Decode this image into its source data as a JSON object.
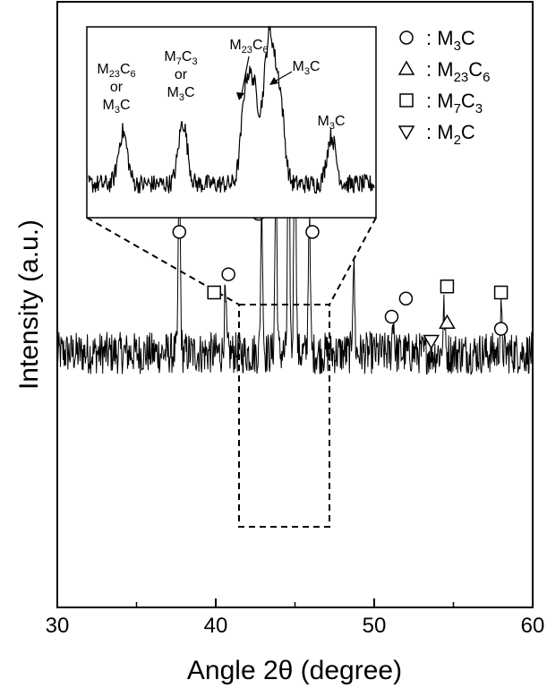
{
  "chart_data": {
    "type": "line",
    "xlabel": "Angle 2θ (degree)",
    "ylabel": "Intensity (a.u.)",
    "xlim": [
      30,
      60
    ],
    "x_ticks": [
      30,
      40,
      50,
      60
    ],
    "y_ticks_labeled": false,
    "grid": false,
    "legend_position": "top-right",
    "legend": [
      {
        "symbol": "circle",
        "label_main": "M",
        "label_sub1": "3",
        "label_rest": "C"
      },
      {
        "symbol": "triangle-up",
        "label_main": "M",
        "label_sub1": "23",
        "label_mid": "C",
        "label_sub2": "6"
      },
      {
        "symbol": "square",
        "label_main": "M",
        "label_sub1": "7",
        "label_mid": "C",
        "label_sub2": "3"
      },
      {
        "symbol": "triangle-down",
        "label_main": "M",
        "label_sub1": "2",
        "label_rest": "C"
      }
    ],
    "series": [
      {
        "peaks": [
          {
            "x": 37.7,
            "height": 0.3
          },
          {
            "x": 40.6,
            "height": 0.09
          },
          {
            "x": 42.9,
            "height": 0.25
          },
          {
            "x": 43.8,
            "height": 0.3
          },
          {
            "x": 44.6,
            "height": 0.4
          },
          {
            "x": 45.0,
            "height": 0.44
          },
          {
            "x": 45.9,
            "height": 0.23
          },
          {
            "x": 48.7,
            "height": 0.15
          },
          {
            "x": 51.2,
            "height": 0.06
          },
          {
            "x": 54.4,
            "height": 0.07
          },
          {
            "x": 58.0,
            "height": 0.06
          }
        ],
        "baseline": 0.42,
        "noise": 0.035
      }
    ],
    "markers": [
      {
        "symbol": "circle",
        "x": 37.7,
        "y": 0.62
      },
      {
        "symbol": "triangle-up",
        "x": 37.7,
        "y": 0.68
      },
      {
        "symbol": "square",
        "x": 39.9,
        "y": 0.52
      },
      {
        "symbol": "circle",
        "x": 40.8,
        "y": 0.55
      },
      {
        "symbol": "circle",
        "x": 42.7,
        "y": 0.65
      },
      {
        "symbol": "triangle-up",
        "x": 42.8,
        "y": 0.71
      },
      {
        "symbol": "circle",
        "x": 43.6,
        "y": 0.73
      },
      {
        "symbol": "square",
        "x": 43.6,
        "y": 0.79
      },
      {
        "symbol": "triangle-up",
        "x": 44.5,
        "y": 0.82
      },
      {
        "symbol": "circle",
        "x": 45.2,
        "y": 0.88
      },
      {
        "symbol": "circle",
        "x": 46.1,
        "y": 0.62
      },
      {
        "symbol": "circle",
        "x": 51.1,
        "y": 0.48
      },
      {
        "symbol": "circle",
        "x": 52.0,
        "y": 0.51
      },
      {
        "symbol": "triangle-down",
        "x": 53.6,
        "y": 0.44
      },
      {
        "symbol": "triangle-up",
        "x": 54.6,
        "y": 0.47
      },
      {
        "symbol": "square",
        "x": 54.6,
        "y": 0.53
      },
      {
        "symbol": "circle",
        "x": 58.0,
        "y": 0.46
      },
      {
        "symbol": "square",
        "x": 58.0,
        "y": 0.52
      }
    ],
    "zoom_region": {
      "xmin": 41.7,
      "xmax": 47.3
    },
    "inset": {
      "peaks": [
        {
          "pos": 0.12,
          "height": 0.38
        },
        {
          "pos": 0.33,
          "height": 0.45
        },
        {
          "pos": 0.55,
          "height": 0.66
        },
        {
          "pos": 0.58,
          "height": 0.62
        },
        {
          "pos": 0.62,
          "height": 0.55
        },
        {
          "pos": 0.64,
          "height": 0.75
        },
        {
          "pos": 0.67,
          "height": 0.6
        },
        {
          "pos": 0.85,
          "height": 0.35
        }
      ],
      "annotations": [
        {
          "lines": [
            [
              "M",
              "23",
              "C",
              "6"
            ],
            [
              "or"
            ],
            [
              "M",
              "3",
              "C"
            ]
          ]
        },
        {
          "lines": [
            [
              "M",
              "7",
              "C",
              "3"
            ],
            [
              "or"
            ],
            [
              "M",
              "3",
              "C"
            ]
          ]
        },
        {
          "lines": [
            [
              "M",
              "23",
              "C",
              "6"
            ]
          ]
        },
        {
          "lines": [
            [
              "M",
              "3",
              "C"
            ]
          ]
        },
        {
          "lines": [
            [
              "M",
              "3",
              "C"
            ]
          ]
        }
      ]
    }
  }
}
